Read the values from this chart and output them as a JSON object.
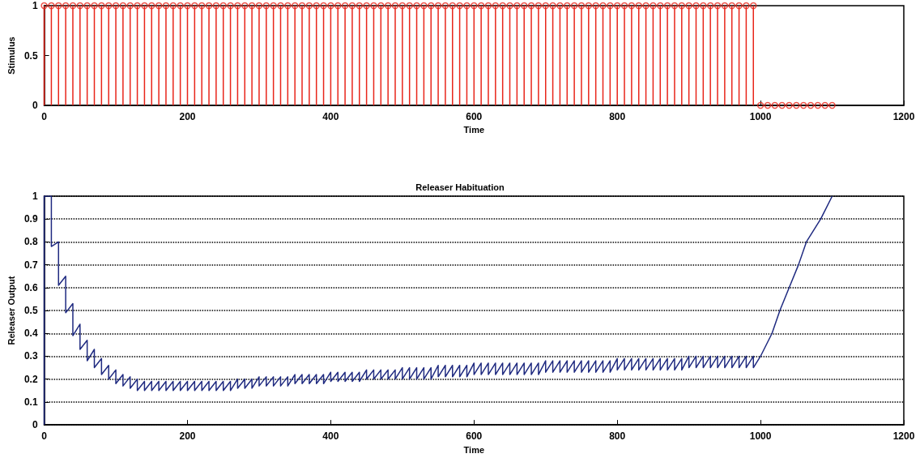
{
  "chart_data": [
    {
      "type": "lollipop",
      "ylabel": "Stimulus",
      "xlabel": "Time",
      "xlim": [
        0,
        1200
      ],
      "xticks": [
        0,
        200,
        400,
        600,
        800,
        1000,
        1200
      ],
      "ylim": [
        0,
        1
      ],
      "yticks": [
        0,
        0.5,
        1
      ],
      "marker": "circle",
      "series": [
        {
          "color": "#e8251a",
          "x": [
            0,
            10,
            20,
            30,
            40,
            50,
            60,
            70,
            80,
            90,
            100,
            110,
            120,
            130,
            140,
            150,
            160,
            170,
            180,
            190,
            200,
            210,
            220,
            230,
            240,
            250,
            260,
            270,
            280,
            290,
            300,
            310,
            320,
            330,
            340,
            350,
            360,
            370,
            380,
            390,
            400,
            410,
            420,
            430,
            440,
            450,
            460,
            470,
            480,
            490,
            500,
            510,
            520,
            530,
            540,
            550,
            560,
            570,
            580,
            590,
            600,
            610,
            620,
            630,
            640,
            650,
            660,
            670,
            680,
            690,
            700,
            710,
            720,
            730,
            740,
            750,
            760,
            770,
            780,
            790,
            800,
            810,
            820,
            830,
            840,
            850,
            860,
            870,
            880,
            890,
            900,
            910,
            920,
            930,
            940,
            950,
            960,
            970,
            980,
            990,
            1000,
            1010,
            1020,
            1030,
            1040,
            1050,
            1060,
            1070,
            1080,
            1090,
            1100
          ],
          "values": [
            1,
            1,
            1,
            1,
            1,
            1,
            1,
            1,
            1,
            1,
            1,
            1,
            1,
            1,
            1,
            1,
            1,
            1,
            1,
            1,
            1,
            1,
            1,
            1,
            1,
            1,
            1,
            1,
            1,
            1,
            1,
            1,
            1,
            1,
            1,
            1,
            1,
            1,
            1,
            1,
            1,
            1,
            1,
            1,
            1,
            1,
            1,
            1,
            1,
            1,
            1,
            1,
            1,
            1,
            1,
            1,
            1,
            1,
            1,
            1,
            1,
            1,
            1,
            1,
            1,
            1,
            1,
            1,
            1,
            1,
            1,
            1,
            1,
            1,
            1,
            1,
            1,
            1,
            1,
            1,
            1,
            1,
            1,
            1,
            1,
            1,
            1,
            1,
            1,
            1,
            1,
            1,
            1,
            1,
            1,
            1,
            1,
            1,
            1,
            1,
            0,
            0,
            0,
            0,
            0,
            0,
            0,
            0,
            0,
            0,
            0
          ]
        }
      ]
    },
    {
      "type": "line",
      "title": "Releaser Habituation",
      "xlabel": "Time",
      "ylabel": "Releaser Output",
      "xlim": [
        0,
        1200
      ],
      "xticks": [
        0,
        200,
        400,
        600,
        800,
        1000,
        1200
      ],
      "ylim": [
        0,
        1
      ],
      "yticks": [
        0,
        0.1,
        0.2,
        0.3,
        0.4,
        0.5,
        0.6,
        0.7,
        0.8,
        0.9,
        1
      ],
      "grid": "y",
      "series": [
        {
          "color": "#1f2a80",
          "x": [
            0,
            0,
            10,
            10,
            20,
            20,
            30,
            30,
            40,
            40,
            50,
            50,
            60,
            60,
            70,
            70,
            80,
            80,
            90,
            90,
            100,
            100,
            110,
            110,
            120,
            120,
            130,
            130,
            140,
            140,
            150,
            150,
            160,
            160,
            170,
            170,
            180,
            180,
            190,
            190,
            200,
            200,
            210,
            210,
            220,
            220,
            230,
            230,
            240,
            240,
            250,
            250,
            260,
            260,
            270,
            270,
            280,
            280,
            290,
            290,
            300,
            300,
            310,
            310,
            320,
            320,
            330,
            330,
            340,
            340,
            350,
            350,
            360,
            360,
            370,
            370,
            380,
            380,
            390,
            390,
            400,
            400,
            410,
            410,
            420,
            420,
            430,
            430,
            440,
            440,
            450,
            450,
            460,
            460,
            470,
            470,
            480,
            480,
            490,
            490,
            500,
            500,
            510,
            510,
            520,
            520,
            530,
            530,
            540,
            540,
            550,
            550,
            560,
            560,
            570,
            570,
            580,
            580,
            590,
            590,
            600,
            600,
            610,
            610,
            620,
            620,
            630,
            630,
            640,
            640,
            650,
            650,
            660,
            660,
            670,
            670,
            680,
            680,
            690,
            690,
            700,
            700,
            710,
            710,
            720,
            720,
            730,
            730,
            740,
            740,
            750,
            750,
            760,
            760,
            770,
            770,
            780,
            780,
            790,
            790,
            800,
            800,
            810,
            810,
            820,
            820,
            830,
            830,
            840,
            840,
            850,
            850,
            860,
            860,
            870,
            870,
            880,
            880,
            890,
            890,
            900,
            900,
            910,
            910,
            920,
            920,
            930,
            930,
            940,
            940,
            950,
            950,
            960,
            960,
            970,
            970,
            980,
            980,
            990,
            990,
            1000,
            1016,
            1027,
            1040,
            1053,
            1064,
            1084,
            1100
          ],
          "values": [
            0,
            1,
            1,
            0.78,
            0.8,
            0.61,
            0.65,
            0.49,
            0.53,
            0.39,
            0.44,
            0.33,
            0.37,
            0.28,
            0.33,
            0.25,
            0.29,
            0.22,
            0.26,
            0.2,
            0.24,
            0.18,
            0.22,
            0.17,
            0.21,
            0.16,
            0.2,
            0.15,
            0.19,
            0.15,
            0.19,
            0.15,
            0.19,
            0.15,
            0.19,
            0.15,
            0.19,
            0.15,
            0.19,
            0.15,
            0.19,
            0.15,
            0.19,
            0.15,
            0.19,
            0.15,
            0.19,
            0.15,
            0.19,
            0.15,
            0.19,
            0.15,
            0.19,
            0.15,
            0.2,
            0.16,
            0.2,
            0.16,
            0.2,
            0.16,
            0.21,
            0.17,
            0.21,
            0.17,
            0.21,
            0.17,
            0.21,
            0.17,
            0.21,
            0.17,
            0.22,
            0.18,
            0.22,
            0.18,
            0.22,
            0.18,
            0.22,
            0.18,
            0.22,
            0.18,
            0.23,
            0.19,
            0.23,
            0.19,
            0.23,
            0.19,
            0.23,
            0.19,
            0.23,
            0.19,
            0.24,
            0.2,
            0.24,
            0.2,
            0.24,
            0.2,
            0.24,
            0.2,
            0.24,
            0.2,
            0.25,
            0.2,
            0.25,
            0.2,
            0.25,
            0.2,
            0.25,
            0.2,
            0.25,
            0.2,
            0.26,
            0.21,
            0.26,
            0.21,
            0.26,
            0.21,
            0.26,
            0.21,
            0.26,
            0.21,
            0.27,
            0.22,
            0.27,
            0.22,
            0.27,
            0.22,
            0.27,
            0.22,
            0.27,
            0.22,
            0.27,
            0.22,
            0.27,
            0.22,
            0.27,
            0.22,
            0.27,
            0.22,
            0.27,
            0.22,
            0.28,
            0.23,
            0.28,
            0.23,
            0.28,
            0.23,
            0.28,
            0.23,
            0.28,
            0.23,
            0.28,
            0.23,
            0.28,
            0.23,
            0.28,
            0.23,
            0.28,
            0.23,
            0.28,
            0.23,
            0.29,
            0.24,
            0.29,
            0.24,
            0.29,
            0.24,
            0.29,
            0.24,
            0.29,
            0.24,
            0.29,
            0.24,
            0.29,
            0.24,
            0.29,
            0.24,
            0.29,
            0.24,
            0.29,
            0.24,
            0.3,
            0.25,
            0.3,
            0.25,
            0.3,
            0.25,
            0.3,
            0.25,
            0.3,
            0.25,
            0.3,
            0.25,
            0.3,
            0.25,
            0.3,
            0.25,
            0.3,
            0.25,
            0.3,
            0.25,
            0.3,
            0.4,
            0.5,
            0.6,
            0.7,
            0.8,
            0.9,
            1
          ]
        }
      ]
    }
  ]
}
